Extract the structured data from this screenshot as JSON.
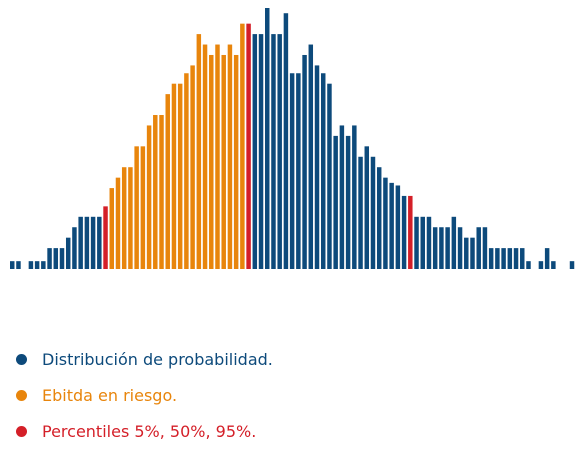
{
  "chart_data": {
    "type": "bar",
    "title": "",
    "xlabel": "",
    "ylabel": "",
    "ylim": [
      0,
      100
    ],
    "colors": {
      "distribution": "#0d4a7b",
      "risk": "#e8850c",
      "percentile": "#d41f28"
    },
    "values": [
      3,
      3,
      0,
      3,
      3,
      3,
      8,
      8,
      8,
      12,
      16,
      20,
      20,
      20,
      20,
      24,
      31,
      35,
      39,
      39,
      47,
      47,
      55,
      59,
      59,
      67,
      71,
      71,
      75,
      78,
      90,
      86,
      82,
      86,
      82,
      86,
      82,
      94,
      94,
      90,
      90,
      100,
      90,
      90,
      98,
      75,
      75,
      82,
      86,
      78,
      75,
      71,
      51,
      55,
      51,
      55,
      43,
      47,
      43,
      39,
      35,
      33,
      32,
      28,
      28,
      20,
      20,
      20,
      16,
      16,
      16,
      20,
      16,
      12,
      12,
      16,
      16,
      8,
      8,
      8,
      8,
      8,
      8,
      3,
      0,
      3,
      8,
      3,
      0,
      0,
      3
    ],
    "colors_index": {
      "risk_start": 16,
      "risk_end": 37,
      "percentile_indices": [
        15,
        38,
        64
      ]
    }
  },
  "legend": [
    {
      "label": "Distribución de probabilidad.",
      "color": "#0d4a7b"
    },
    {
      "label": "Ebitda en riesgo.",
      "color": "#e8850c"
    },
    {
      "label": "Percentiles 5%, 50%, 95%.",
      "color": "#d41f28"
    }
  ]
}
